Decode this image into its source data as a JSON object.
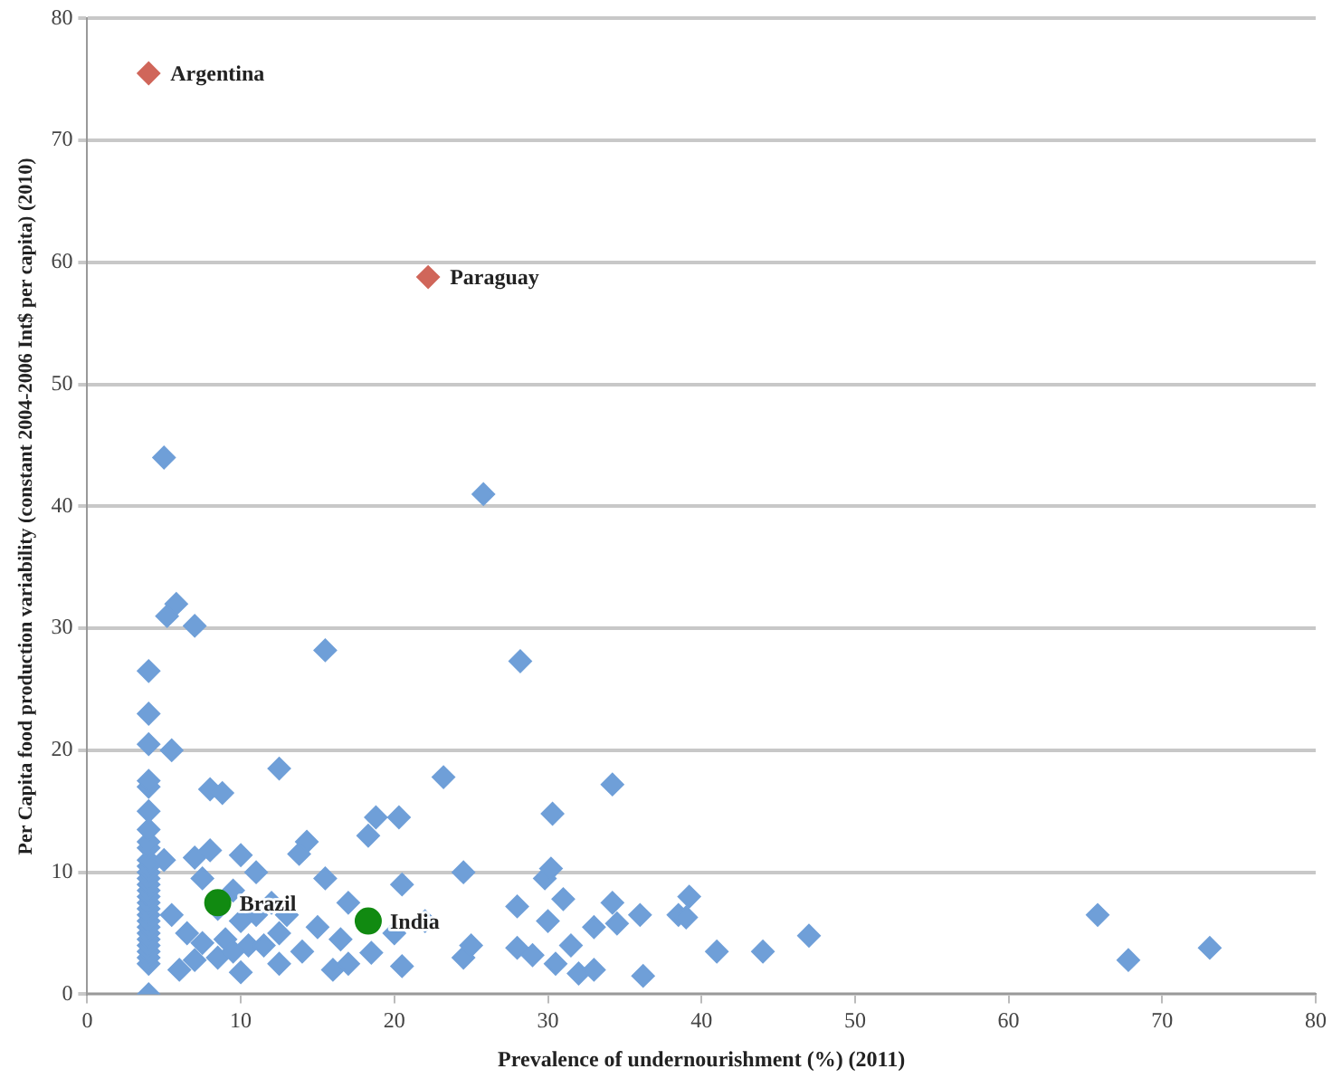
{
  "chart_data": {
    "type": "scatter",
    "xlabel": "Prevalence of undernourishment (%) (2011)",
    "ylabel": "Per Capita food production variability (constant 2004-2006 Int$ per capita) (2010)",
    "xlim": [
      0,
      80
    ],
    "xticks": [
      0,
      10,
      20,
      30,
      40,
      50,
      60,
      70,
      80
    ],
    "ylim": [
      0,
      80
    ],
    "yticks": [
      0,
      10,
      20,
      30,
      40,
      50,
      60,
      70,
      80
    ],
    "grid": "y",
    "series": [
      {
        "color": "#6f9fd8",
        "marker": "diamond",
        "x": [
          4,
          4,
          4,
          4,
          4,
          4,
          4,
          4,
          4,
          4,
          4,
          4,
          4,
          4,
          4,
          4,
          4,
          4,
          4,
          4,
          4,
          4,
          4,
          4,
          4,
          4,
          4,
          4,
          5,
          5.2,
          5.8,
          7,
          5.5,
          15.5,
          25.8,
          28.2,
          12.5,
          23.2,
          34.2,
          8,
          8.8,
          14.3,
          13.8,
          18.8,
          20.3,
          18.3,
          30.3,
          5,
          7,
          8,
          10,
          11,
          20.5,
          24.5,
          29.8,
          30.2,
          15.5,
          7.5,
          12,
          17,
          11,
          9.5,
          8.5,
          10,
          13,
          15,
          16.5,
          20,
          22,
          28,
          31,
          34.2,
          38.5,
          39.2,
          39,
          36,
          33,
          30,
          34.5,
          5.5,
          6.5,
          7.5,
          9,
          10.5,
          11.5,
          12.5,
          8.5,
          9.5,
          7,
          6,
          10,
          12.5,
          14,
          16,
          17,
          18.5,
          20.5,
          24.5,
          25,
          28,
          29,
          30.5,
          31.5,
          32,
          33,
          36.2,
          41,
          44,
          47,
          65.8,
          67.8,
          73.1
        ],
        "values": [
          0,
          2.5,
          3,
          3.5,
          4,
          4.5,
          5,
          5.5,
          6,
          6.5,
          7,
          7.5,
          8,
          8.5,
          9,
          9.5,
          10,
          10.5,
          11,
          12,
          12.5,
          13.5,
          15,
          17,
          17.5,
          20.5,
          23,
          26.5,
          44,
          31,
          32,
          30.2,
          20,
          28.2,
          41,
          27.3,
          18.5,
          17.8,
          17.2,
          16.8,
          16.5,
          12.5,
          11.5,
          14.5,
          14.5,
          13,
          14.8,
          11,
          11.2,
          11.8,
          11.4,
          10,
          9,
          10,
          9.5,
          10.3,
          9.5,
          9.5,
          7.5,
          7.5,
          6.5,
          8.5,
          7,
          6,
          6.5,
          5.5,
          4.5,
          5,
          6,
          7.2,
          7.8,
          7.5,
          6.5,
          8,
          6.3,
          6.5,
          5.5,
          6,
          5.8,
          6.5,
          5,
          4.2,
          4.5,
          4,
          4,
          5,
          3,
          3.5,
          2.8,
          2,
          1.8,
          2.5,
          3.5,
          2,
          2.5,
          3.4,
          2.3,
          3,
          4,
          3.8,
          3.2,
          2.5,
          4,
          1.7,
          2,
          1.5,
          3.5,
          3.5,
          4.8,
          6.5,
          2.8,
          3.8
        ]
      },
      {
        "color": "#118a11",
        "marker": "circle",
        "x": [
          8.5,
          18.3
        ],
        "values": [
          7.5,
          6
        ]
      },
      {
        "color": "#d0665a",
        "marker": "diamond",
        "x": [
          4,
          22.2
        ],
        "values": [
          75.5,
          58.8
        ]
      }
    ],
    "annotations": [
      {
        "text": "Argentina",
        "x": 4,
        "y": 75.5
      },
      {
        "text": "Paraguay",
        "x": 22.2,
        "y": 58.8
      },
      {
        "text": "Brazil",
        "x": 8.5,
        "y": 7.5
      },
      {
        "text": "India",
        "x": 18.3,
        "y": 6
      }
    ]
  }
}
